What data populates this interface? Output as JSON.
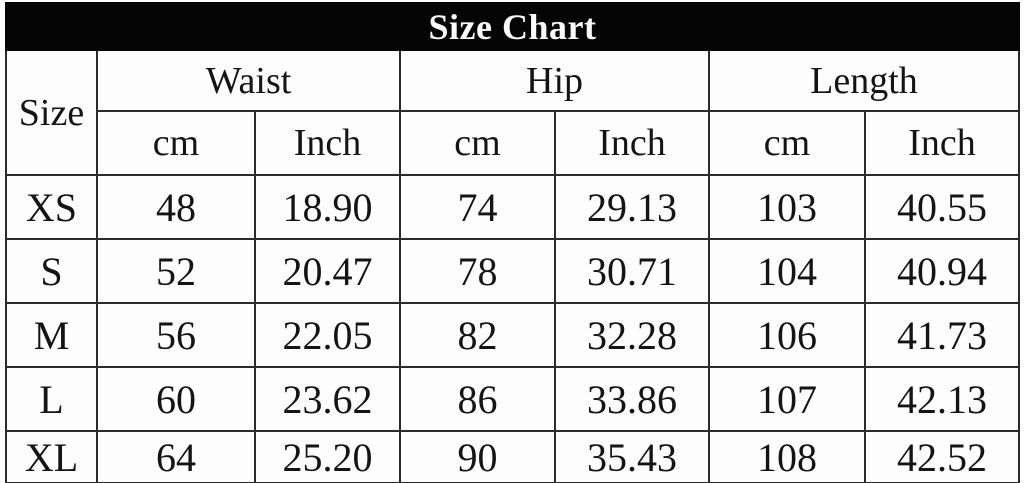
{
  "chart_data": {
    "type": "table",
    "title": "Size Chart",
    "row_header": "Size",
    "column_groups": [
      {
        "label": "Waist",
        "sub": [
          "cm",
          "Inch"
        ]
      },
      {
        "label": "Hip",
        "sub": [
          "cm",
          "Inch"
        ]
      },
      {
        "label": "Length",
        "sub": [
          "cm",
          "Inch"
        ]
      }
    ],
    "rows": [
      {
        "size": "XS",
        "waist_cm": "48",
        "waist_inch": "18.90",
        "hip_cm": "74",
        "hip_inch": "29.13",
        "length_cm": "103",
        "length_inch": "40.55"
      },
      {
        "size": "S",
        "waist_cm": "52",
        "waist_inch": "20.47",
        "hip_cm": "78",
        "hip_inch": "30.71",
        "length_cm": "104",
        "length_inch": "40.94"
      },
      {
        "size": "M",
        "waist_cm": "56",
        "waist_inch": "22.05",
        "hip_cm": "82",
        "hip_inch": "32.28",
        "length_cm": "106",
        "length_inch": "41.73"
      },
      {
        "size": "L",
        "waist_cm": "60",
        "waist_inch": "23.62",
        "hip_cm": "86",
        "hip_inch": "33.86",
        "length_cm": "107",
        "length_inch": "42.13"
      },
      {
        "size": "XL",
        "waist_cm": "64",
        "waist_inch": "25.20",
        "hip_cm": "90",
        "hip_inch": "35.43",
        "length_cm": "108",
        "length_inch": "42.52"
      }
    ],
    "colors": {
      "title_bg": "#050505",
      "title_text": "#fbfbfb",
      "border": "#2b2b2b",
      "cell_bg": "#fdfdfd",
      "text": "#141414"
    }
  }
}
